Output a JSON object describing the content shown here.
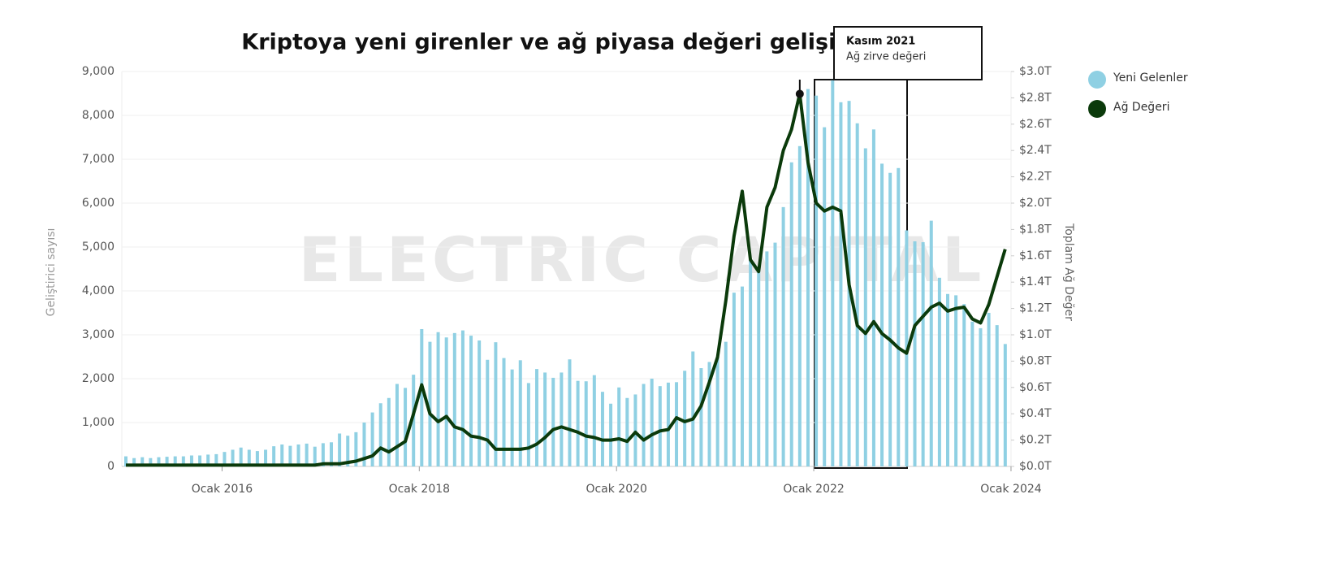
{
  "chart_data": {
    "type": "bar",
    "title": "Kriptoya yeni girenler ve ağ piyasa değeri gelişimi",
    "watermark": "ELECTRIC CAPITAL",
    "ylabel": "Geliştirici sayısı",
    "y2label": "Toplam Ağ Değer",
    "legend": "right",
    "grid": true,
    "categories": [
      "2015-01",
      "2015-02",
      "2015-03",
      "2015-04",
      "2015-05",
      "2015-06",
      "2015-07",
      "2015-08",
      "2015-09",
      "2015-10",
      "2015-11",
      "2015-12",
      "2016-01",
      "2016-02",
      "2016-03",
      "2016-04",
      "2016-05",
      "2016-06",
      "2016-07",
      "2016-08",
      "2016-09",
      "2016-10",
      "2016-11",
      "2016-12",
      "2017-01",
      "2017-02",
      "2017-03",
      "2017-04",
      "2017-05",
      "2017-06",
      "2017-07",
      "2017-08",
      "2017-09",
      "2017-10",
      "2017-11",
      "2017-12",
      "2018-01",
      "2018-02",
      "2018-03",
      "2018-04",
      "2018-05",
      "2018-06",
      "2018-07",
      "2018-08",
      "2018-09",
      "2018-10",
      "2018-11",
      "2018-12",
      "2019-01",
      "2019-02",
      "2019-03",
      "2019-04",
      "2019-05",
      "2019-06",
      "2019-07",
      "2019-08",
      "2019-09",
      "2019-10",
      "2019-11",
      "2019-12",
      "2020-01",
      "2020-02",
      "2020-03",
      "2020-04",
      "2020-05",
      "2020-06",
      "2020-07",
      "2020-08",
      "2020-09",
      "2020-10",
      "2020-11",
      "2020-12",
      "2021-01",
      "2021-02",
      "2021-03",
      "2021-04",
      "2021-05",
      "2021-06",
      "2021-07",
      "2021-08",
      "2021-09",
      "2021-10",
      "2021-11",
      "2021-12",
      "2022-01",
      "2022-02",
      "2022-03",
      "2022-04",
      "2022-05",
      "2022-06",
      "2022-07",
      "2022-08",
      "2022-09",
      "2022-10",
      "2022-11",
      "2022-12",
      "2023-01",
      "2023-02",
      "2023-03",
      "2023-04",
      "2023-05",
      "2023-06",
      "2023-07",
      "2023-08",
      "2023-09",
      "2023-10",
      "2023-11",
      "2023-12"
    ],
    "xticks": [
      {
        "value": "2016-01",
        "label": "Ocak 2016"
      },
      {
        "value": "2018-01",
        "label": "Ocak 2018"
      },
      {
        "value": "2020-01",
        "label": "Ocak 2020"
      },
      {
        "value": "2022-01",
        "label": "Ocak 2022"
      },
      {
        "value": "2024-01",
        "label": "Ocak 2024"
      }
    ],
    "ylim": [
      0,
      9000
    ],
    "yticks": [
      0,
      {
        "value": 1000,
        "label": "1,000"
      },
      {
        "value": 2000,
        "label": "2,000"
      },
      {
        "value": 3000,
        "label": "3,000"
      },
      {
        "value": 4000,
        "label": "4,000"
      },
      {
        "value": 5000,
        "label": "5,000"
      },
      {
        "value": 6000,
        "label": "6,000"
      },
      {
        "value": 7000,
        "label": "7,000"
      },
      {
        "value": 8000,
        "label": "8,000"
      },
      {
        "value": 9000,
        "label": "9,000"
      }
    ],
    "y2lim": [
      0,
      3.0
    ],
    "y2ticks": [
      {
        "value": 0,
        "label": "$0.0T"
      },
      {
        "value": 0.2,
        "label": "$0.2T"
      },
      {
        "value": 0.4,
        "label": "$0.4T"
      },
      {
        "value": 0.6,
        "label": "$0.6T"
      },
      {
        "value": 0.8,
        "label": "$0.8T"
      },
      {
        "value": 1.0,
        "label": "$1.0T"
      },
      {
        "value": 1.2,
        "label": "$1.2T"
      },
      {
        "value": 1.4,
        "label": "$1.4T"
      },
      {
        "value": 1.6,
        "label": "$1.6T"
      },
      {
        "value": 1.8,
        "label": "$1.8T"
      },
      {
        "value": 2.0,
        "label": "$2.0T"
      },
      {
        "value": 2.2,
        "label": "$2.2T"
      },
      {
        "value": 2.4,
        "label": "$2.4T"
      },
      {
        "value": 2.6,
        "label": "$2.6T"
      },
      {
        "value": 2.8,
        "label": "$2.8T"
      },
      {
        "value": 3.0,
        "label": "$3.0T"
      }
    ],
    "series": [
      {
        "name": "Yeni Gelenler",
        "type": "bar",
        "color": "#8fd0e3",
        "values": [
          230,
          190,
          210,
          190,
          210,
          220,
          230,
          230,
          250,
          250,
          270,
          280,
          330,
          380,
          430,
          380,
          350,
          380,
          460,
          500,
          470,
          500,
          520,
          450,
          530,
          550,
          750,
          700,
          780,
          1000,
          1230,
          1440,
          1560,
          1880,
          1790,
          2090,
          3130,
          2840,
          3060,
          2940,
          3040,
          3100,
          2980,
          2870,
          2430,
          2830,
          2470,
          2210,
          2420,
          1900,
          2220,
          2140,
          2020,
          2140,
          2440,
          1950,
          1940,
          2080,
          1700,
          1430,
          1800,
          1560,
          1640,
          1880,
          2000,
          1830,
          1910,
          1920,
          2180,
          2620,
          2240,
          2380,
          2500,
          2840,
          3960,
          4100,
          4700,
          4550,
          4900,
          5100,
          5910,
          6930,
          7300,
          8600,
          8450,
          7730,
          8800,
          8300,
          8330,
          7820,
          7250,
          7680,
          6900,
          6690,
          6800,
          5380,
          5130,
          5110,
          5600,
          4300,
          3930,
          3900,
          3700,
          3300,
          3150,
          3500,
          3220,
          2790
        ]
      },
      {
        "name": "Ağ Değeri",
        "type": "line",
        "axis": "y2",
        "color": "#0b3a0b",
        "values": [
          0.01,
          0.01,
          0.01,
          0.01,
          0.01,
          0.01,
          0.01,
          0.01,
          0.01,
          0.01,
          0.01,
          0.01,
          0.01,
          0.01,
          0.01,
          0.01,
          0.01,
          0.01,
          0.01,
          0.01,
          0.01,
          0.01,
          0.01,
          0.01,
          0.02,
          0.02,
          0.02,
          0.03,
          0.04,
          0.06,
          0.08,
          0.14,
          0.11,
          0.15,
          0.19,
          0.4,
          0.62,
          0.4,
          0.34,
          0.38,
          0.3,
          0.28,
          0.23,
          0.22,
          0.2,
          0.13,
          0.13,
          0.13,
          0.13,
          0.14,
          0.17,
          0.22,
          0.28,
          0.3,
          0.28,
          0.26,
          0.23,
          0.22,
          0.2,
          0.2,
          0.21,
          0.19,
          0.26,
          0.2,
          0.24,
          0.27,
          0.28,
          0.37,
          0.34,
          0.36,
          0.46,
          0.64,
          0.83,
          1.26,
          1.75,
          2.09,
          1.57,
          1.48,
          1.97,
          2.12,
          2.4,
          2.56,
          2.83,
          2.31,
          2.0,
          1.94,
          1.97,
          1.94,
          1.38,
          1.07,
          1.01,
          1.1,
          1.01,
          0.96,
          0.9,
          0.86,
          1.07,
          1.14,
          1.21,
          1.24,
          1.18,
          1.2,
          1.21,
          1.12,
          1.09,
          1.23,
          1.44,
          1.65
        ]
      }
    ],
    "tooltip": {
      "title": "Kasım 2021",
      "text": "Ağ zirve değeri"
    }
  }
}
